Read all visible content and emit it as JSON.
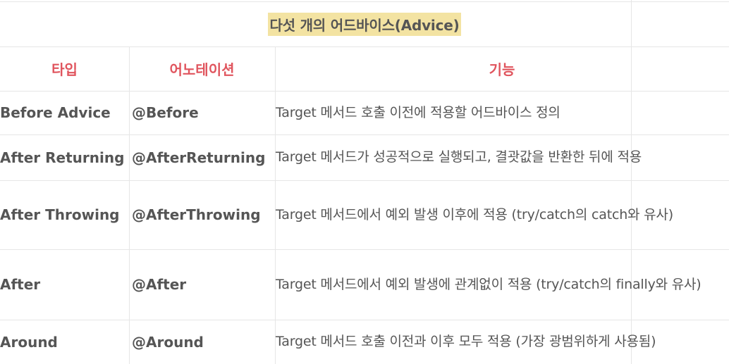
{
  "table": {
    "title": "다섯 개의 어드바이스(Advice)",
    "headers": [
      "타입",
      "어노테이션",
      "기능"
    ],
    "rows": [
      {
        "type": "Before Advice",
        "annotation": "@Before",
        "description": "Target 메서드 호출 이전에 적용할 어드바이스 정의"
      },
      {
        "type": "After Returning",
        "annotation": "@AfterReturning",
        "description": "Target 메서드가 성공적으로 실행되고, 결괏값을 반환한 뒤에 적용"
      },
      {
        "type": "After Throwing",
        "annotation": "@AfterThrowing",
        "description": "Target 메서드에서 예외 발생 이후에 적용 (try/catch의 catch와 유사)"
      },
      {
        "type": "After",
        "annotation": "@After",
        "description": "Target 메서드에서 예외 발생에 관계없이 적용 (try/catch의 finally와 유사)"
      },
      {
        "type": "Around",
        "annotation": "@Around",
        "description": "Target 메서드 호출 이전과 이후 모두 적용 (가장 광범위하게 사용됨)"
      }
    ]
  },
  "colors": {
    "header_text": "#e0555e",
    "title_highlight": "#f3e3a2",
    "border": "#e6e6e6",
    "body_text": "#555555"
  }
}
